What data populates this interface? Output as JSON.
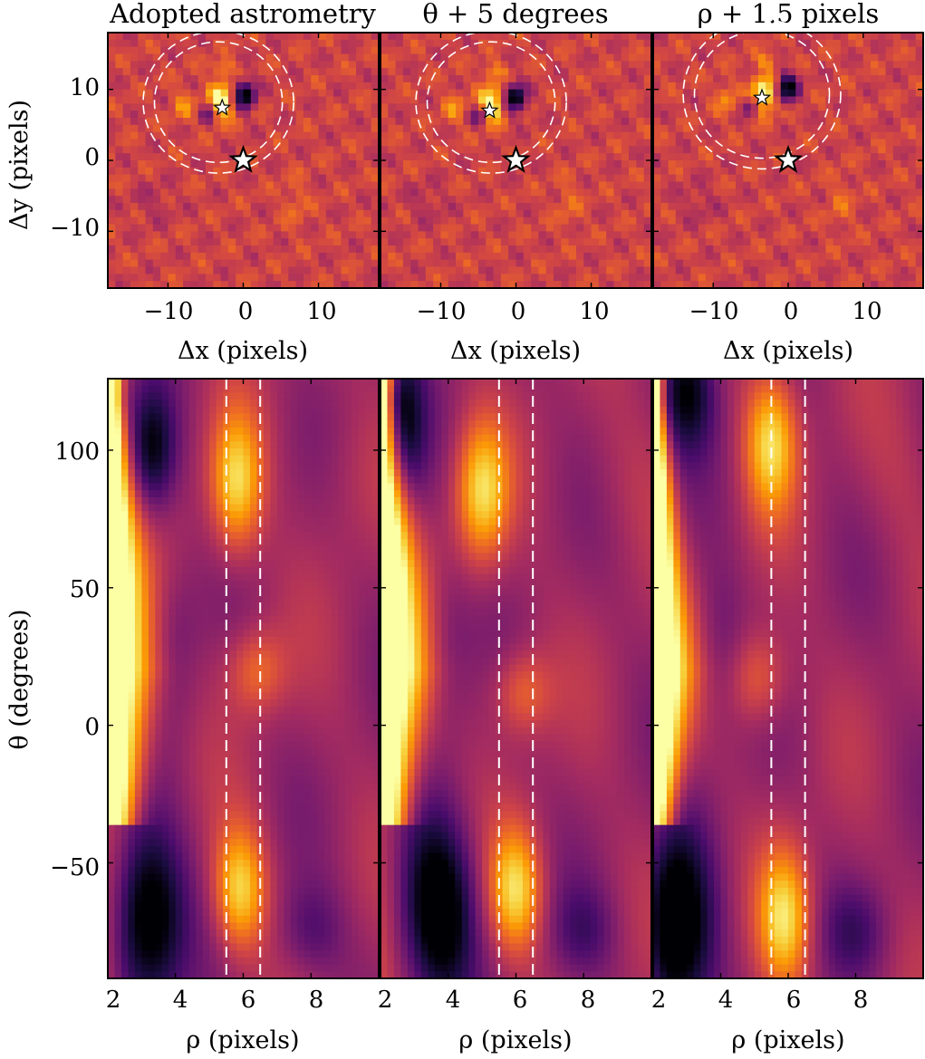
{
  "colormap": [
    "#000004",
    "#1b0c41",
    "#4a0c6b",
    "#781c6d",
    "#a52c60",
    "#cf4446",
    "#ed6925",
    "#fb9b06",
    "#f7d13d",
    "#fcffa4"
  ],
  "marker_color": "#ffffff",
  "guide_color": "#ffffff",
  "chart_data": [
    {
      "type": "heatmap",
      "title": "Adopted astrometry",
      "xlabel": "Δx (pixels)",
      "ylabel": "Δy (pixels)",
      "xlim": [
        -18,
        18
      ],
      "ylim": [
        -18,
        18
      ],
      "xticks": [
        -10,
        0,
        10
      ],
      "yticks": [
        -10,
        0,
        10
      ],
      "xtick_labels": [
        "−10",
        "0",
        "10"
      ],
      "ytick_labels": [
        "−10",
        "0",
        "10"
      ],
      "companion_marker": [
        -2.8,
        7.4
      ],
      "host_star_marker": [
        0,
        0
      ],
      "aperture_center": [
        -3.3,
        8.2
      ],
      "aperture_radii": [
        8.5,
        10.0
      ]
    },
    {
      "type": "heatmap",
      "title": "θ + 5 degrees",
      "xlabel": "Δx (pixels)",
      "ylabel": "",
      "xlim": [
        -18,
        18
      ],
      "ylim": [
        -18,
        18
      ],
      "xticks": [
        -10,
        0,
        10
      ],
      "xtick_labels": [
        "−10",
        "0",
        "10"
      ],
      "companion_marker": [
        -3.5,
        7.0
      ],
      "host_star_marker": [
        0,
        0
      ],
      "aperture_center": [
        -3.3,
        8.2
      ],
      "aperture_radii": [
        8.5,
        10.0
      ]
    },
    {
      "type": "heatmap",
      "title": "ρ + 1.5 pixels",
      "xlabel": "Δx (pixels)",
      "ylabel": "",
      "xlim": [
        -18,
        18
      ],
      "ylim": [
        -18,
        18
      ],
      "xticks": [
        -10,
        0,
        10
      ],
      "xtick_labels": [
        "−10",
        "0",
        "10"
      ],
      "companion_marker": [
        -3.5,
        8.8
      ],
      "host_star_marker": [
        0,
        0
      ],
      "aperture_center": [
        -3.5,
        9.3
      ],
      "aperture_radii": [
        9.0,
        10.5
      ]
    },
    {
      "type": "heatmap",
      "title": "",
      "xlabel": "ρ (pixels)",
      "ylabel": "θ (degrees)",
      "xlim": [
        2,
        10
      ],
      "ylim": [
        -92,
        126
      ],
      "xticks": [
        2,
        4,
        6,
        8
      ],
      "yticks": [
        -50,
        0,
        50,
        100
      ],
      "xtick_labels": [
        "2",
        "4",
        "6",
        "8"
      ],
      "ytick_labels": [
        "−50",
        "0",
        "50",
        "100"
      ],
      "rho_guides": [
        5.5,
        6.5
      ]
    },
    {
      "type": "heatmap",
      "title": "",
      "xlabel": "ρ (pixels)",
      "ylabel": "",
      "xlim": [
        2,
        10
      ],
      "ylim": [
        -92,
        126
      ],
      "xticks": [
        2,
        4,
        6,
        8
      ],
      "xtick_labels": [
        "2",
        "4",
        "6",
        "8"
      ],
      "rho_guides": [
        5.5,
        6.5
      ]
    },
    {
      "type": "heatmap",
      "title": "",
      "xlabel": "ρ (pixels)",
      "ylabel": "",
      "xlim": [
        2,
        10
      ],
      "ylim": [
        -92,
        126
      ],
      "xticks": [
        2,
        4,
        6,
        8
      ],
      "xtick_labels": [
        "2",
        "4",
        "6",
        "8"
      ],
      "rho_guides": [
        5.5,
        6.5
      ]
    }
  ]
}
